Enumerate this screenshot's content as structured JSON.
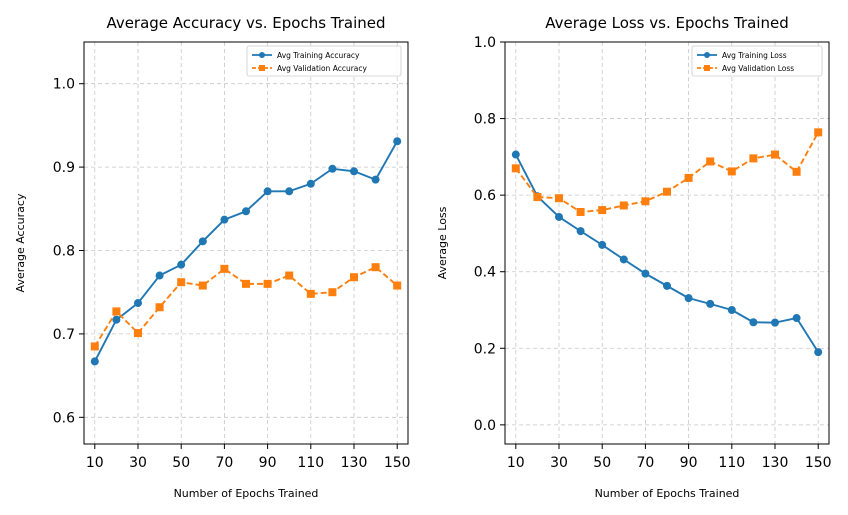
{
  "chart_data": [
    {
      "type": "line",
      "title": "Average Accuracy vs. Epochs Trained",
      "xlabel": "Number of Epochs Trained",
      "ylabel": "Average Accuracy",
      "x": [
        10,
        20,
        30,
        40,
        50,
        60,
        70,
        80,
        90,
        100,
        110,
        120,
        130,
        140,
        150
      ],
      "xticks": [
        10,
        30,
        50,
        70,
        90,
        110,
        130,
        150
      ],
      "yticks": [
        0.6,
        0.7,
        0.8,
        0.9,
        1.0
      ],
      "ytick_labels": [
        "0.6",
        "0.7",
        "0.8",
        "0.9",
        "1.0"
      ],
      "xlim": [
        5,
        155
      ],
      "ylim": [
        0.568,
        1.05
      ],
      "grid": true,
      "legend_position": "top-right",
      "series": [
        {
          "name": "Avg Training Accuracy",
          "color": "#1f77b4",
          "marker": "circle",
          "linestyle": "solid",
          "values": [
            0.667,
            0.717,
            0.737,
            0.77,
            0.783,
            0.811,
            0.837,
            0.847,
            0.871,
            0.871,
            0.88,
            0.898,
            0.895,
            0.885,
            0.931
          ]
        },
        {
          "name": "Avg Validation Accuracy",
          "color": "#ff7f0e",
          "marker": "square",
          "linestyle": "dashed",
          "values": [
            0.685,
            0.727,
            0.701,
            0.732,
            0.762,
            0.758,
            0.778,
            0.76,
            0.76,
            0.77,
            0.748,
            0.75,
            0.768,
            0.78,
            0.758
          ]
        }
      ]
    },
    {
      "type": "line",
      "title": "Average Loss vs. Epochs Trained",
      "xlabel": "Number of Epochs Trained",
      "ylabel": "Average Loss",
      "x": [
        10,
        20,
        30,
        40,
        50,
        60,
        70,
        80,
        90,
        100,
        110,
        120,
        130,
        140,
        150
      ],
      "xticks": [
        10,
        30,
        50,
        70,
        90,
        110,
        130,
        150
      ],
      "yticks": [
        0.0,
        0.2,
        0.4,
        0.6,
        0.8,
        1.0
      ],
      "ytick_labels": [
        "0.0",
        "0.2",
        "0.4",
        "0.6",
        "0.8",
        "1.0"
      ],
      "xlim": [
        5,
        155
      ],
      "ylim": [
        -0.05,
        1.0
      ],
      "grid": true,
      "legend_position": "top-right",
      "series": [
        {
          "name": "Avg Training Loss",
          "color": "#1f77b4",
          "marker": "circle",
          "linestyle": "solid",
          "values": [
            0.706,
            0.597,
            0.543,
            0.506,
            0.47,
            0.432,
            0.395,
            0.363,
            0.331,
            0.316,
            0.3,
            0.268,
            0.267,
            0.279,
            0.19
          ]
        },
        {
          "name": "Avg Validation Loss",
          "color": "#ff7f0e",
          "marker": "square",
          "linestyle": "dashed",
          "values": [
            0.67,
            0.595,
            0.592,
            0.556,
            0.561,
            0.573,
            0.584,
            0.609,
            0.645,
            0.688,
            0.662,
            0.696,
            0.706,
            0.661,
            0.764
          ]
        }
      ]
    }
  ]
}
